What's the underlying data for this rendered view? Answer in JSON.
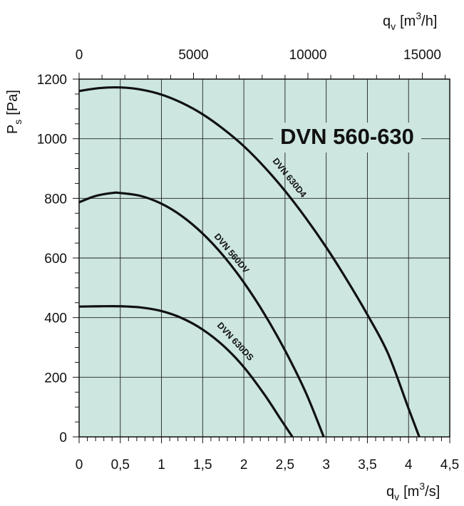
{
  "chart_data": {
    "type": "line",
    "title": "DVN 560-630",
    "background": "#cde6e0",
    "grid": true,
    "x_bottom": {
      "label_main": "q",
      "label_sub": "v",
      "label_unit": "[m",
      "label_sup": "3",
      "label_tail": "/s]",
      "lim": [
        0,
        4.5
      ],
      "ticks": [
        0,
        0.5,
        1,
        1.5,
        2,
        2.5,
        3,
        3.5,
        4,
        4.5
      ],
      "tick_labels": [
        "0",
        "0,5",
        "1",
        "1,5",
        "2",
        "2,5",
        "3",
        "3,5",
        "4",
        "4,5"
      ]
    },
    "x_top": {
      "label_main": "q",
      "label_sub": "v",
      "label_unit": "[m",
      "label_sup": "3",
      "label_tail": "/h]",
      "lim": [
        0,
        16200
      ],
      "ticks": [
        0,
        5000,
        10000,
        15000
      ],
      "tick_labels": [
        "0",
        "5000",
        "10000",
        "15000"
      ]
    },
    "y": {
      "label_main": "P",
      "label_sub": "s",
      "label_unit": "[Pa]",
      "lim": [
        0,
        1200
      ],
      "ticks": [
        0,
        200,
        400,
        600,
        800,
        1000,
        1200
      ],
      "tick_labels": [
        "0",
        "200",
        "400",
        "600",
        "800",
        "1000",
        "1200"
      ]
    },
    "series": [
      {
        "name": "DVN 630D4",
        "x": [
          0,
          0.25,
          0.5,
          0.75,
          1.0,
          1.25,
          1.5,
          1.75,
          2.0,
          2.25,
          2.5,
          2.75,
          3.0,
          3.25,
          3.5,
          3.75,
          4.0,
          4.13
        ],
        "y": [
          1160,
          1170,
          1172,
          1165,
          1148,
          1120,
          1082,
          1033,
          975,
          905,
          825,
          735,
          636,
          527,
          410,
          280,
          95,
          0
        ]
      },
      {
        "name": "DVN 560DV",
        "x": [
          0,
          0.2,
          0.4,
          0.5,
          0.75,
          1.0,
          1.25,
          1.5,
          1.75,
          2.0,
          2.25,
          2.5,
          2.75,
          2.97
        ],
        "y": [
          787,
          808,
          818,
          818,
          808,
          782,
          740,
          682,
          608,
          518,
          412,
          290,
          150,
          0
        ]
      },
      {
        "name": "DVN 630DS",
        "x": [
          0,
          0.25,
          0.5,
          0.75,
          1.0,
          1.25,
          1.5,
          1.75,
          2.0,
          2.25,
          2.45,
          2.59
        ],
        "y": [
          437,
          438,
          438,
          434,
          422,
          398,
          360,
          306,
          234,
          142,
          58,
          0
        ]
      }
    ],
    "labels": [
      {
        "text": "DVN 630D4"
      },
      {
        "text": "DVN 560DV"
      },
      {
        "text": "DVN 630DS"
      }
    ]
  }
}
